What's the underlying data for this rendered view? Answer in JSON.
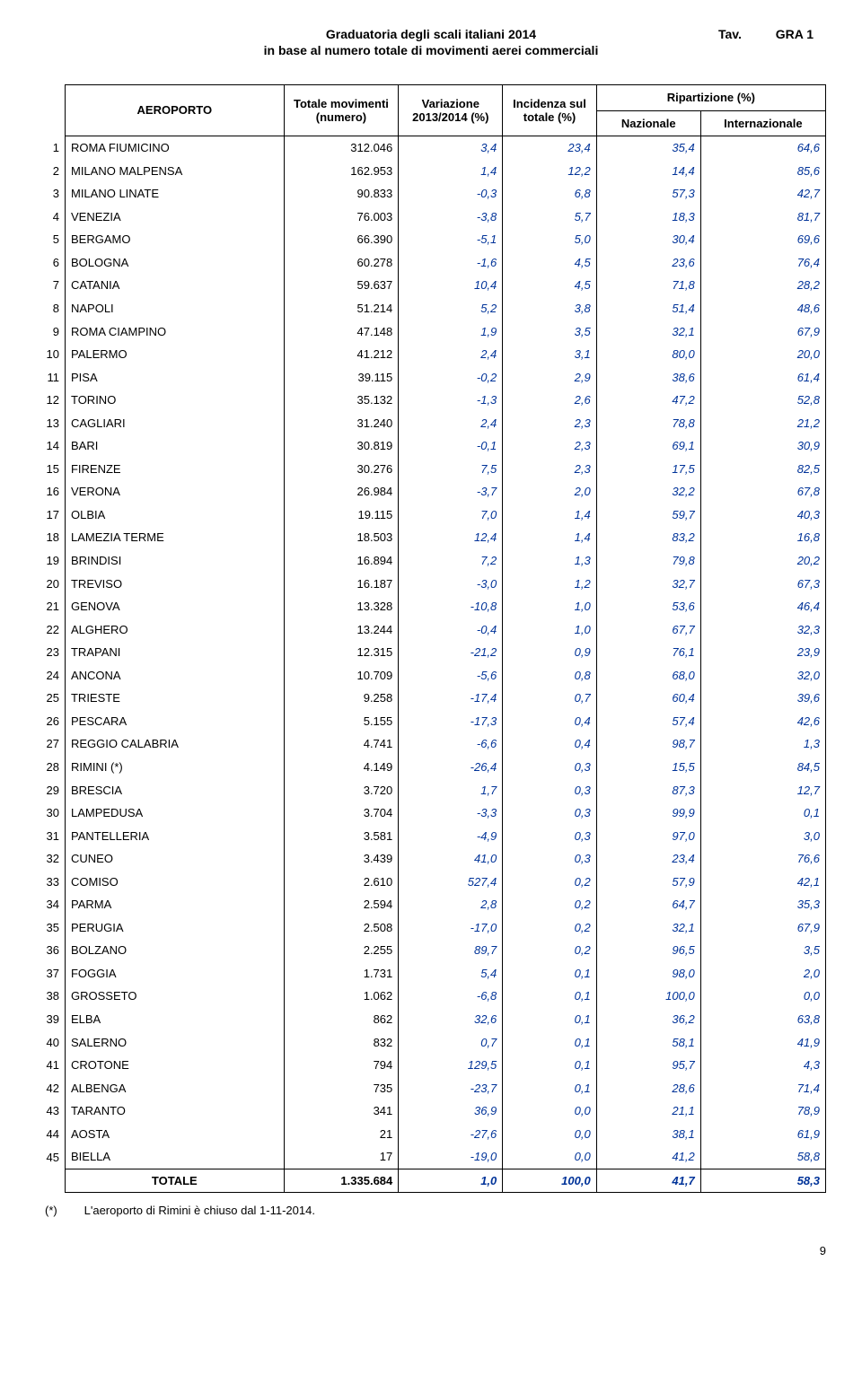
{
  "header": {
    "tav_label": "Tav.",
    "tav_code": "GRA 1",
    "title_line1": "Graduatoria degli scali italiani 2014",
    "title_line2": "in base al numero totale di movimenti aerei commerciali"
  },
  "columns": {
    "aeroporto": "AEROPORTO",
    "totale": "Totale movimenti (numero)",
    "variazione": "Variazione 2013/2014 (%)",
    "incidenza": "Incidenza sul totale (%)",
    "ripartizione": "Ripartizione (%)",
    "nazionale": "Nazionale",
    "internazionale": "Internazionale"
  },
  "styling": {
    "italic_color": "#003399",
    "background_color": "#ffffff",
    "font_size_body": 13,
    "font_size_title": 14
  },
  "rows": [
    {
      "rank": "1",
      "name": "ROMA FIUMICINO",
      "movements": "312.046",
      "var": "3,4",
      "inc": "23,4",
      "nat": "35,4",
      "int": "64,6"
    },
    {
      "rank": "2",
      "name": "MILANO MALPENSA",
      "movements": "162.953",
      "var": "1,4",
      "inc": "12,2",
      "nat": "14,4",
      "int": "85,6"
    },
    {
      "rank": "3",
      "name": "MILANO LINATE",
      "movements": "90.833",
      "var": "-0,3",
      "inc": "6,8",
      "nat": "57,3",
      "int": "42,7"
    },
    {
      "rank": "4",
      "name": "VENEZIA",
      "movements": "76.003",
      "var": "-3,8",
      "inc": "5,7",
      "nat": "18,3",
      "int": "81,7"
    },
    {
      "rank": "5",
      "name": "BERGAMO",
      "movements": "66.390",
      "var": "-5,1",
      "inc": "5,0",
      "nat": "30,4",
      "int": "69,6"
    },
    {
      "rank": "6",
      "name": "BOLOGNA",
      "movements": "60.278",
      "var": "-1,6",
      "inc": "4,5",
      "nat": "23,6",
      "int": "76,4"
    },
    {
      "rank": "7",
      "name": "CATANIA",
      "movements": "59.637",
      "var": "10,4",
      "inc": "4,5",
      "nat": "71,8",
      "int": "28,2"
    },
    {
      "rank": "8",
      "name": "NAPOLI",
      "movements": "51.214",
      "var": "5,2",
      "inc": "3,8",
      "nat": "51,4",
      "int": "48,6"
    },
    {
      "rank": "9",
      "name": "ROMA CIAMPINO",
      "movements": "47.148",
      "var": "1,9",
      "inc": "3,5",
      "nat": "32,1",
      "int": "67,9"
    },
    {
      "rank": "10",
      "name": "PALERMO",
      "movements": "41.212",
      "var": "2,4",
      "inc": "3,1",
      "nat": "80,0",
      "int": "20,0"
    },
    {
      "rank": "11",
      "name": "PISA",
      "movements": "39.115",
      "var": "-0,2",
      "inc": "2,9",
      "nat": "38,6",
      "int": "61,4"
    },
    {
      "rank": "12",
      "name": "TORINO",
      "movements": "35.132",
      "var": "-1,3",
      "inc": "2,6",
      "nat": "47,2",
      "int": "52,8"
    },
    {
      "rank": "13",
      "name": "CAGLIARI",
      "movements": "31.240",
      "var": "2,4",
      "inc": "2,3",
      "nat": "78,8",
      "int": "21,2"
    },
    {
      "rank": "14",
      "name": "BARI",
      "movements": "30.819",
      "var": "-0,1",
      "inc": "2,3",
      "nat": "69,1",
      "int": "30,9"
    },
    {
      "rank": "15",
      "name": "FIRENZE",
      "movements": "30.276",
      "var": "7,5",
      "inc": "2,3",
      "nat": "17,5",
      "int": "82,5"
    },
    {
      "rank": "16",
      "name": "VERONA",
      "movements": "26.984",
      "var": "-3,7",
      "inc": "2,0",
      "nat": "32,2",
      "int": "67,8"
    },
    {
      "rank": "17",
      "name": "OLBIA",
      "movements": "19.115",
      "var": "7,0",
      "inc": "1,4",
      "nat": "59,7",
      "int": "40,3"
    },
    {
      "rank": "18",
      "name": "LAMEZIA TERME",
      "movements": "18.503",
      "var": "12,4",
      "inc": "1,4",
      "nat": "83,2",
      "int": "16,8"
    },
    {
      "rank": "19",
      "name": "BRINDISI",
      "movements": "16.894",
      "var": "7,2",
      "inc": "1,3",
      "nat": "79,8",
      "int": "20,2"
    },
    {
      "rank": "20",
      "name": "TREVISO",
      "movements": "16.187",
      "var": "-3,0",
      "inc": "1,2",
      "nat": "32,7",
      "int": "67,3"
    },
    {
      "rank": "21",
      "name": "GENOVA",
      "movements": "13.328",
      "var": "-10,8",
      "inc": "1,0",
      "nat": "53,6",
      "int": "46,4"
    },
    {
      "rank": "22",
      "name": "ALGHERO",
      "movements": "13.244",
      "var": "-0,4",
      "inc": "1,0",
      "nat": "67,7",
      "int": "32,3"
    },
    {
      "rank": "23",
      "name": "TRAPANI",
      "movements": "12.315",
      "var": "-21,2",
      "inc": "0,9",
      "nat": "76,1",
      "int": "23,9"
    },
    {
      "rank": "24",
      "name": "ANCONA",
      "movements": "10.709",
      "var": "-5,6",
      "inc": "0,8",
      "nat": "68,0",
      "int": "32,0"
    },
    {
      "rank": "25",
      "name": "TRIESTE",
      "movements": "9.258",
      "var": "-17,4",
      "inc": "0,7",
      "nat": "60,4",
      "int": "39,6"
    },
    {
      "rank": "26",
      "name": "PESCARA",
      "movements": "5.155",
      "var": "-17,3",
      "inc": "0,4",
      "nat": "57,4",
      "int": "42,6"
    },
    {
      "rank": "27",
      "name": "REGGIO CALABRIA",
      "movements": "4.741",
      "var": "-6,6",
      "inc": "0,4",
      "nat": "98,7",
      "int": "1,3"
    },
    {
      "rank": "28",
      "name": "RIMINI (*)",
      "movements": "4.149",
      "var": "-26,4",
      "inc": "0,3",
      "nat": "15,5",
      "int": "84,5"
    },
    {
      "rank": "29",
      "name": "BRESCIA",
      "movements": "3.720",
      "var": "1,7",
      "inc": "0,3",
      "nat": "87,3",
      "int": "12,7"
    },
    {
      "rank": "30",
      "name": "LAMPEDUSA",
      "movements": "3.704",
      "var": "-3,3",
      "inc": "0,3",
      "nat": "99,9",
      "int": "0,1"
    },
    {
      "rank": "31",
      "name": "PANTELLERIA",
      "movements": "3.581",
      "var": "-4,9",
      "inc": "0,3",
      "nat": "97,0",
      "int": "3,0"
    },
    {
      "rank": "32",
      "name": "CUNEO",
      "movements": "3.439",
      "var": "41,0",
      "inc": "0,3",
      "nat": "23,4",
      "int": "76,6"
    },
    {
      "rank": "33",
      "name": "COMISO",
      "movements": "2.610",
      "var": "527,4",
      "inc": "0,2",
      "nat": "57,9",
      "int": "42,1"
    },
    {
      "rank": "34",
      "name": "PARMA",
      "movements": "2.594",
      "var": "2,8",
      "inc": "0,2",
      "nat": "64,7",
      "int": "35,3"
    },
    {
      "rank": "35",
      "name": "PERUGIA",
      "movements": "2.508",
      "var": "-17,0",
      "inc": "0,2",
      "nat": "32,1",
      "int": "67,9"
    },
    {
      "rank": "36",
      "name": "BOLZANO",
      "movements": "2.255",
      "var": "89,7",
      "inc": "0,2",
      "nat": "96,5",
      "int": "3,5"
    },
    {
      "rank": "37",
      "name": "FOGGIA",
      "movements": "1.731",
      "var": "5,4",
      "inc": "0,1",
      "nat": "98,0",
      "int": "2,0"
    },
    {
      "rank": "38",
      "name": "GROSSETO",
      "movements": "1.062",
      "var": "-6,8",
      "inc": "0,1",
      "nat": "100,0",
      "int": "0,0"
    },
    {
      "rank": "39",
      "name": "ELBA",
      "movements": "862",
      "var": "32,6",
      "inc": "0,1",
      "nat": "36,2",
      "int": "63,8"
    },
    {
      "rank": "40",
      "name": "SALERNO",
      "movements": "832",
      "var": "0,7",
      "inc": "0,1",
      "nat": "58,1",
      "int": "41,9"
    },
    {
      "rank": "41",
      "name": "CROTONE",
      "movements": "794",
      "var": "129,5",
      "inc": "0,1",
      "nat": "95,7",
      "int": "4,3"
    },
    {
      "rank": "42",
      "name": "ALBENGA",
      "movements": "735",
      "var": "-23,7",
      "inc": "0,1",
      "nat": "28,6",
      "int": "71,4"
    },
    {
      "rank": "43",
      "name": "TARANTO",
      "movements": "341",
      "var": "36,9",
      "inc": "0,0",
      "nat": "21,1",
      "int": "78,9"
    },
    {
      "rank": "44",
      "name": "AOSTA",
      "movements": "21",
      "var": "-27,6",
      "inc": "0,0",
      "nat": "38,1",
      "int": "61,9"
    },
    {
      "rank": "45",
      "name": "BIELLA",
      "movements": "17",
      "var": "-19,0",
      "inc": "0,0",
      "nat": "41,2",
      "int": "58,8"
    }
  ],
  "total": {
    "label": "TOTALE",
    "movements": "1.335.684",
    "var": "1,0",
    "inc": "100,0",
    "nat": "41,7",
    "int": "58,3"
  },
  "footnote": {
    "star": "(*)",
    "text": "L'aeroporto di Rimini è chiuso dal 1-11-2014."
  },
  "page_number": "9"
}
